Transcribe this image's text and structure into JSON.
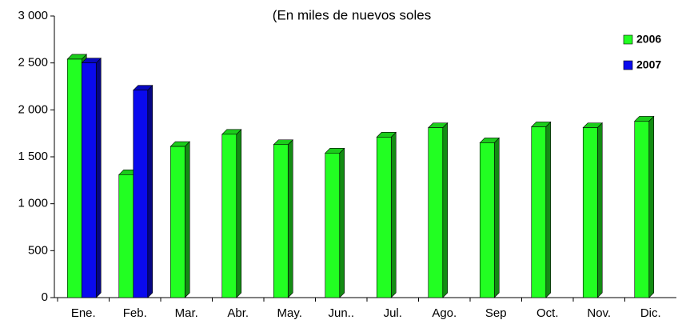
{
  "chart_data": {
    "type": "bar3d",
    "title": "(En miles de nuevos soles",
    "categories": [
      "Ene.",
      "Feb.",
      "Mar.",
      "Abr.",
      "May.",
      "Jun..",
      "Jul.",
      "Ago.",
      "Sep",
      "Oct.",
      "Nov.",
      "Dic."
    ],
    "series": [
      {
        "name": "2006",
        "color": "#22ff22",
        "values": [
          2540,
          1310,
          1610,
          1740,
          1630,
          1540,
          1710,
          1810,
          1650,
          1820,
          1810,
          1880
        ]
      },
      {
        "name": "2007",
        "color": "#0a0aee",
        "values": [
          2500,
          2210,
          null,
          null,
          null,
          null,
          null,
          null,
          null,
          null,
          null,
          null
        ]
      }
    ],
    "ylim": [
      0,
      3000
    ],
    "yticks": [
      0,
      500,
      {
        "value": 1000,
        "label": "1 000"
      },
      {
        "value": 1500,
        "label": "1 500"
      },
      {
        "value": 2000,
        "label": "2 000"
      },
      {
        "value": 2500,
        "label": "2 500"
      },
      {
        "value": 3000,
        "label": "3 000"
      }
    ],
    "grid": false,
    "legend": "top-right"
  }
}
